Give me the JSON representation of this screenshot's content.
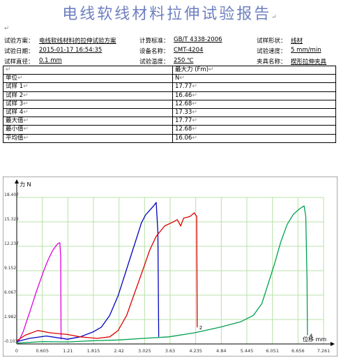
{
  "report": {
    "title": "电线软线材料拉伸试验报告",
    "mark": "↵"
  },
  "info": {
    "scheme_label": "试验方案：",
    "scheme_value": "电线软线材料的拉伸试验方案",
    "standard_label": "计算标准：",
    "standard_value": "GB/T 4338-2006",
    "shape_label": "试样形状：",
    "shape_value": "线材",
    "date_label": "试验日期：",
    "date_value": "2015-01-17 16:54:35",
    "device_label": "设备名称：",
    "device_value": "CMT-4204",
    "speed_label": "试验速度：",
    "speed_value": "5 mm/min",
    "diameter_label": "试样直径：",
    "diameter_value": "0.1 mm",
    "temp_label": "试验温度：",
    "temp_value": "250 ℃",
    "fixture_label": "夹具名称：",
    "fixture_value": "楔形拉伸夹具"
  },
  "table": {
    "header": "最大力 (Fm)",
    "unit_label": "单位",
    "unit_value": "N",
    "rows": [
      {
        "label": "试样 1",
        "value": "17.77"
      },
      {
        "label": "试样 2",
        "value": "16.46"
      },
      {
        "label": "试样 3",
        "value": "12.68"
      },
      {
        "label": "试样 4",
        "value": "17.33"
      },
      {
        "label": "最大值",
        "value": "17.77"
      },
      {
        "label": "最小值",
        "value": "12.68"
      },
      {
        "label": "平均值",
        "value": "16.06"
      }
    ]
  },
  "chart_data": {
    "type": "line",
    "ylabel": "力 N",
    "xlabel": "位移 mm",
    "xlim": [
      0,
      7.261
    ],
    "ylim": [
      -0.103,
      18.407
    ],
    "grid": true,
    "x_ticks": [
      "0",
      "0.605",
      "1.21",
      "1.815",
      "2.42",
      "3.025",
      "3.63",
      "4.235",
      "4.84",
      "5.445",
      "6.051",
      "6.656",
      "7.261"
    ],
    "y_ticks": [
      "-0.103",
      "2.982",
      "6.067",
      "9.152",
      "12.237",
      "15.322",
      "18.407"
    ],
    "series": [
      {
        "color": "#e000e0",
        "end_label": "",
        "points": [
          [
            0.02,
            0.1
          ],
          [
            0.08,
            0.6
          ],
          [
            0.15,
            1.4
          ],
          [
            0.25,
            3.0
          ],
          [
            0.35,
            4.6
          ],
          [
            0.45,
            6.3
          ],
          [
            0.55,
            7.8
          ],
          [
            0.65,
            9.3
          ],
          [
            0.75,
            10.6
          ],
          [
            0.85,
            11.7
          ],
          [
            0.93,
            12.3
          ],
          [
            0.98,
            12.6
          ],
          [
            1.02,
            12.68
          ],
          [
            1.04,
            11.0
          ],
          [
            1.05,
            0.5
          ]
        ]
      },
      {
        "color": "#0000c0",
        "end_label": "",
        "points": [
          [
            0.0,
            0.2
          ],
          [
            0.3,
            0.6
          ],
          [
            0.7,
            0.9
          ],
          [
            1.2,
            0.5
          ],
          [
            1.5,
            0.8
          ],
          [
            1.8,
            1.4
          ],
          [
            2.0,
            2.0
          ],
          [
            2.2,
            3.5
          ],
          [
            2.4,
            6.0
          ],
          [
            2.55,
            8.5
          ],
          [
            2.7,
            11.0
          ],
          [
            2.85,
            13.5
          ],
          [
            2.95,
            15.2
          ],
          [
            3.05,
            16.2
          ],
          [
            3.15,
            16.8
          ],
          [
            3.25,
            17.4
          ],
          [
            3.3,
            17.77
          ],
          [
            3.34,
            14.0
          ],
          [
            3.36,
            0.8
          ]
        ]
      },
      {
        "color": "#e00000",
        "end_label": "2",
        "points": [
          [
            0.0,
            0.3
          ],
          [
            0.2,
            1.0
          ],
          [
            0.5,
            1.6
          ],
          [
            0.8,
            1.3
          ],
          [
            1.2,
            1.1
          ],
          [
            1.5,
            0.8
          ],
          [
            1.9,
            0.6
          ],
          [
            2.2,
            0.8
          ],
          [
            2.4,
            1.6
          ],
          [
            2.6,
            3.5
          ],
          [
            2.8,
            6.5
          ],
          [
            3.0,
            9.5
          ],
          [
            3.15,
            11.8
          ],
          [
            3.3,
            13.5
          ],
          [
            3.5,
            14.8
          ],
          [
            3.7,
            15.3
          ],
          [
            3.8,
            15.6
          ],
          [
            3.88,
            14.8
          ],
          [
            3.95,
            15.8
          ],
          [
            4.1,
            16.0
          ],
          [
            4.2,
            16.46
          ],
          [
            4.26,
            16.0
          ],
          [
            4.27,
            2.0
          ]
        ]
      },
      {
        "color": "#00a050",
        "end_label": "4",
        "points": [
          [
            0.0,
            0.0
          ],
          [
            0.6,
            0.2
          ],
          [
            1.2,
            0.15
          ],
          [
            1.8,
            0.3
          ],
          [
            2.4,
            0.4
          ],
          [
            3.0,
            0.6
          ],
          [
            3.6,
            0.8
          ],
          [
            4.2,
            1.3
          ],
          [
            4.8,
            2.0
          ],
          [
            5.3,
            2.7
          ],
          [
            5.6,
            3.5
          ],
          [
            5.8,
            5.0
          ],
          [
            5.95,
            7.5
          ],
          [
            6.1,
            10.0
          ],
          [
            6.25,
            12.8
          ],
          [
            6.4,
            15.0
          ],
          [
            6.55,
            16.3
          ],
          [
            6.7,
            17.0
          ],
          [
            6.8,
            17.33
          ],
          [
            6.84,
            16.0
          ],
          [
            6.87,
            8.0
          ],
          [
            6.88,
            1.0
          ]
        ]
      }
    ]
  }
}
